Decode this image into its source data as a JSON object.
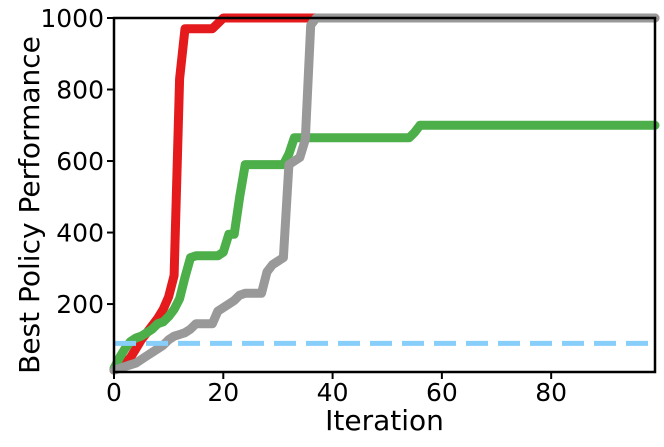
{
  "chart_data": {
    "type": "line",
    "title": "",
    "xlabel": "Iteration",
    "ylabel": "Best Policy Performance",
    "xlim": [
      0,
      99
    ],
    "ylim": [
      10,
      1000
    ],
    "xticks": [
      0,
      20,
      40,
      60,
      80
    ],
    "yticks": [
      200,
      400,
      600,
      800,
      1000
    ],
    "grid": false,
    "legend": "none",
    "series": [
      {
        "color": "#e41a1c",
        "style": "solid",
        "x": [
          0,
          1,
          2,
          3,
          4,
          5,
          6,
          7,
          8,
          9,
          10,
          11,
          12,
          13,
          14,
          15,
          16,
          17,
          18,
          19,
          20,
          21,
          22,
          25,
          30,
          35,
          40,
          50,
          60,
          70,
          80,
          90,
          99
        ],
        "y": [
          15,
          25,
          35,
          50,
          75,
          100,
          120,
          140,
          160,
          185,
          220,
          280,
          830,
          970,
          970,
          970,
          970,
          970,
          970,
          985,
          1000,
          1000,
          1000,
          1000,
          1000,
          1000,
          1000,
          1000,
          1000,
          1000,
          1000,
          1000,
          1000
        ]
      },
      {
        "color": "#4daf4a",
        "style": "solid",
        "x": [
          0,
          1,
          2,
          3,
          4,
          5,
          6,
          7,
          8,
          9,
          10,
          11,
          12,
          13,
          14,
          15,
          16,
          17,
          18,
          19,
          20,
          21,
          22,
          23,
          24,
          25,
          30,
          31,
          32,
          33,
          34,
          35,
          37,
          40,
          50,
          54,
          55,
          56,
          60,
          70,
          80,
          90,
          99
        ],
        "y": [
          20,
          50,
          75,
          95,
          105,
          110,
          120,
          130,
          145,
          150,
          165,
          185,
          215,
          275,
          330,
          335,
          335,
          335,
          335,
          335,
          345,
          395,
          395,
          500,
          590,
          590,
          590,
          590,
          620,
          665,
          665,
          665,
          665,
          665,
          665,
          665,
          680,
          700,
          700,
          700,
          700,
          700,
          700
        ]
      },
      {
        "color": "#999999",
        "style": "solid",
        "x": [
          0,
          1,
          2,
          3,
          4,
          5,
          6,
          7,
          8,
          9,
          10,
          11,
          12,
          13,
          14,
          15,
          16,
          17,
          18,
          19,
          20,
          21,
          22,
          23,
          24,
          25,
          26,
          27,
          28,
          29,
          30,
          31,
          32,
          33,
          34,
          35,
          36,
          37,
          38,
          40,
          50,
          60,
          70,
          80,
          90,
          99
        ],
        "y": [
          15,
          20,
          25,
          30,
          35,
          45,
          55,
          65,
          75,
          85,
          100,
          110,
          115,
          120,
          130,
          145,
          145,
          145,
          145,
          180,
          190,
          200,
          210,
          225,
          230,
          230,
          230,
          230,
          290,
          310,
          320,
          330,
          590,
          600,
          610,
          660,
          980,
          1000,
          1000,
          1000,
          1000,
          1000,
          1000,
          1000,
          1000,
          1000
        ]
      },
      {
        "color": "#87cefa",
        "style": "dashed",
        "x": [
          0,
          99
        ],
        "y": [
          90,
          90
        ]
      }
    ]
  }
}
